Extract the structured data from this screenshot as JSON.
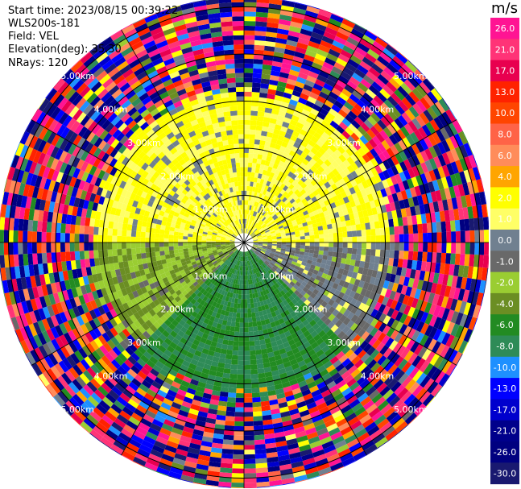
{
  "header": {
    "start_time": "Start time: 2023/08/15 00:39:22",
    "instrument": "WLS200s-181",
    "field": "Field: VEL",
    "elevation": "Elevation(deg): 35.30",
    "nrays": "NRays: 120"
  },
  "colorbar": {
    "unit": "m/s",
    "ticks": [
      "26.0",
      "21.0",
      "17.0",
      "13.0",
      "10.0",
      "8.0",
      "6.0",
      "4.0",
      "2.0",
      "1.0",
      "0.0",
      "-1.0",
      "-2.0",
      "-4.0",
      "-6.0",
      "-8.0",
      "-10.0",
      "-13.0",
      "-17.0",
      "-21.0",
      "-26.0",
      "-30.0"
    ],
    "colors": [
      "#ff1493",
      "#ff3377",
      "#e8004f",
      "#ff2200",
      "#ff4500",
      "#ff6347",
      "#ff8c5a",
      "#ffa500",
      "#ffff00",
      "#ffff66",
      "#708090",
      "#696969",
      "#9acd32",
      "#6b8e23",
      "#228b22",
      "#2e8b57",
      "#1e90ff",
      "#0000ff",
      "#0000cd",
      "#00008b",
      "#000080",
      "#191970"
    ]
  },
  "chart_data": {
    "type": "heatmap",
    "subtype": "ppi",
    "range_rings_km": [
      1,
      2,
      3,
      4,
      5
    ],
    "range_ring_labels": [
      "1.00km",
      "2.00km",
      "3.00km",
      "4.00km",
      "5.00km"
    ],
    "nrays": 120,
    "field": "VEL",
    "unit": "m/s",
    "vmin": -30,
    "vmax": 30,
    "sectors": [
      {
        "from_deg": 0,
        "to_deg": 90,
        "dominant_velocity": 2.0
      },
      {
        "from_deg": 90,
        "to_deg": 135,
        "dominant_velocity": 0.0
      },
      {
        "from_deg": 135,
        "to_deg": 225,
        "dominant_velocity": -6.0
      },
      {
        "from_deg": 225,
        "to_deg": 270,
        "dominant_velocity": -2.0
      },
      {
        "from_deg": 270,
        "to_deg": 360,
        "dominant_velocity": 2.0
      }
    ],
    "noise_beyond_km": 3.0
  }
}
